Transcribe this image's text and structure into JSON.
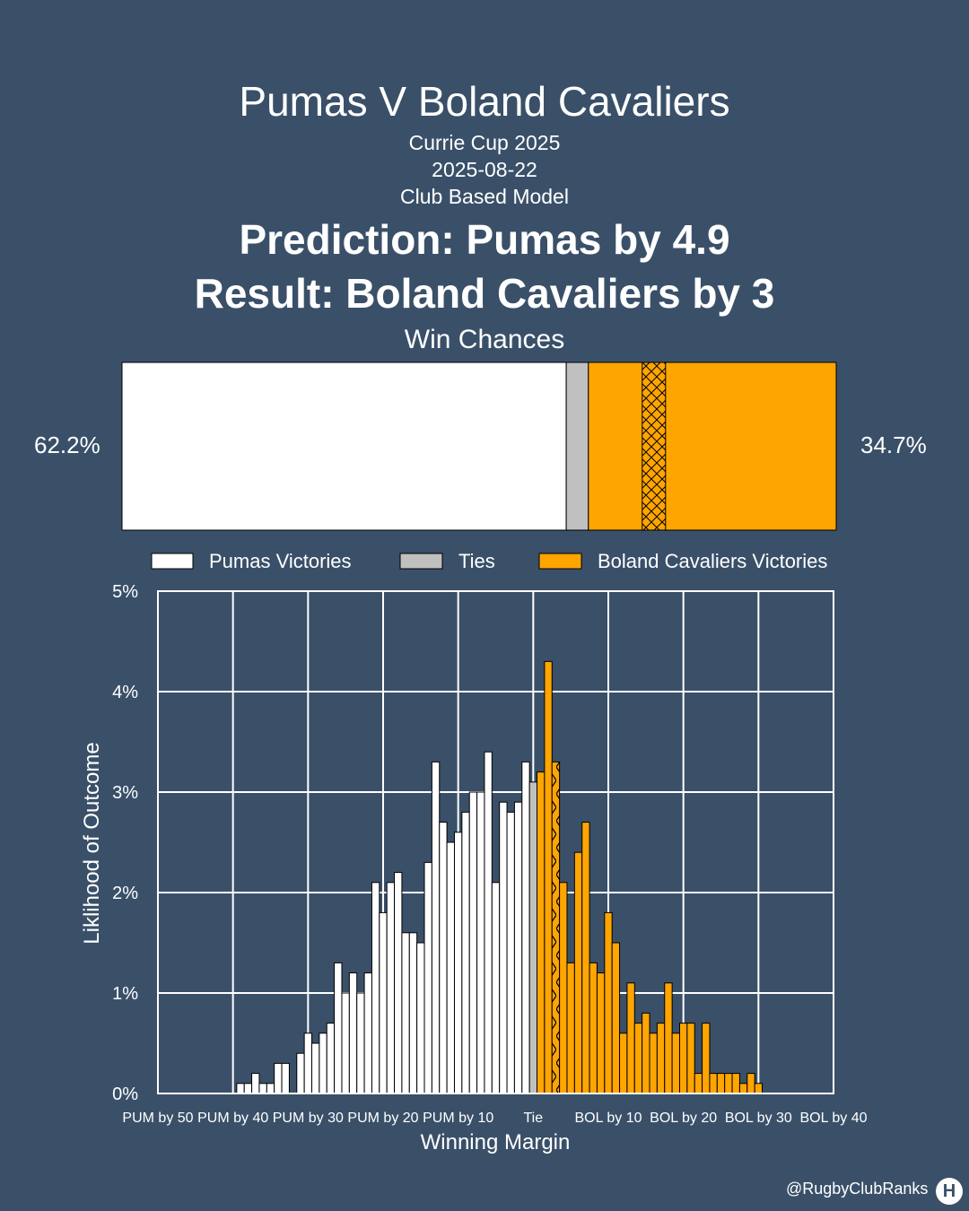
{
  "header": {
    "title": "Pumas V Boland Cavaliers",
    "competition": "Currie Cup 2025",
    "date": "2025-08-22",
    "model": "Club Based Model",
    "prediction": "Prediction: Pumas by 4.9",
    "result": "Result: Boland Cavaliers by 3",
    "win_chances_label": "Win Chances"
  },
  "win_bar": {
    "home_pct": 62.2,
    "tie_pct": 3.1,
    "away_pct": 34.7,
    "home_label": "62.2%",
    "away_label": "34.7%",
    "actual_result_margin": 3
  },
  "legend": {
    "home": "Pumas Victories",
    "tie": "Ties",
    "away": "Boland Cavaliers Victories"
  },
  "colors": {
    "background": "#3a5069",
    "home": "#ffffff",
    "tie": "#c0c0c0",
    "away": "#ffa500",
    "bar_edge": "#000000",
    "grid": "#ffffff"
  },
  "chart_data": {
    "type": "bar",
    "xlabel": "Winning Margin",
    "ylabel": "Liklihood of Outcome",
    "xlim": [
      -50,
      40
    ],
    "ylim": [
      0,
      5
    ],
    "grid": true,
    "x_ticks": [
      {
        "value": -50,
        "label": "PUM by 50"
      },
      {
        "value": -40,
        "label": "PUM by 40"
      },
      {
        "value": -30,
        "label": "PUM by 30"
      },
      {
        "value": -20,
        "label": "PUM by 20"
      },
      {
        "value": -10,
        "label": "PUM by 10"
      },
      {
        "value": 0,
        "label": "Tie"
      },
      {
        "value": 10,
        "label": "BOL by 10"
      },
      {
        "value": 20,
        "label": "BOL by 20"
      },
      {
        "value": 30,
        "label": "BOL by 30"
      },
      {
        "value": 40,
        "label": "BOL by 40"
      }
    ],
    "y_ticks": [
      {
        "value": 0,
        "label": "0%"
      },
      {
        "value": 1,
        "label": "1%"
      },
      {
        "value": 2,
        "label": "2%"
      },
      {
        "value": 3,
        "label": "3%"
      },
      {
        "value": 4,
        "label": "4%"
      },
      {
        "value": 5,
        "label": "5%"
      }
    ],
    "highlighted_margin": 3,
    "series": [
      {
        "name": "Pumas Victories",
        "x": [
          -39,
          -38,
          -37,
          -36,
          -35,
          -34,
          -33,
          -32,
          -31,
          -30,
          -29,
          -28,
          -27,
          -26,
          -25,
          -24,
          -23,
          -22,
          -21,
          -20,
          -19,
          -18,
          -17,
          -16,
          -15,
          -14,
          -13,
          -12,
          -11,
          -10,
          -9,
          -8,
          -7,
          -6,
          -5,
          -4,
          -3,
          -2,
          -1
        ],
        "values": [
          0.1,
          0.1,
          0.2,
          0.1,
          0.1,
          0.3,
          0.3,
          0,
          0.4,
          0.6,
          0.5,
          0.6,
          0.7,
          1.3,
          1.0,
          1.2,
          1.0,
          1.2,
          2.1,
          1.8,
          2.1,
          2.2,
          1.6,
          1.6,
          1.5,
          2.3,
          3.3,
          2.7,
          2.5,
          2.6,
          2.8,
          3.0,
          3.0,
          3.4,
          2.1,
          2.9,
          2.8,
          2.9,
          3.3
        ]
      },
      {
        "name": "Ties",
        "x": [
          0
        ],
        "values": [
          3.1
        ]
      },
      {
        "name": "Boland Cavaliers Victories",
        "x": [
          1,
          2,
          3,
          4,
          5,
          6,
          7,
          8,
          9,
          10,
          11,
          12,
          13,
          14,
          15,
          16,
          17,
          18,
          19,
          20,
          21,
          22,
          23,
          24,
          25,
          26,
          27,
          28,
          29,
          30
        ],
        "values": [
          3.2,
          4.3,
          3.3,
          2.1,
          1.3,
          2.4,
          2.7,
          1.3,
          1.2,
          1.8,
          1.5,
          0.6,
          1.1,
          0.7,
          0.8,
          0.6,
          0.7,
          1.1,
          0.6,
          0.7,
          0.7,
          0.2,
          0.7,
          0.2,
          0.2,
          0.2,
          0.2,
          0.1,
          0.2,
          0.1
        ]
      }
    ]
  },
  "footer": {
    "watermark": "@RugbyClubRanks",
    "logo_glyph": "H"
  }
}
